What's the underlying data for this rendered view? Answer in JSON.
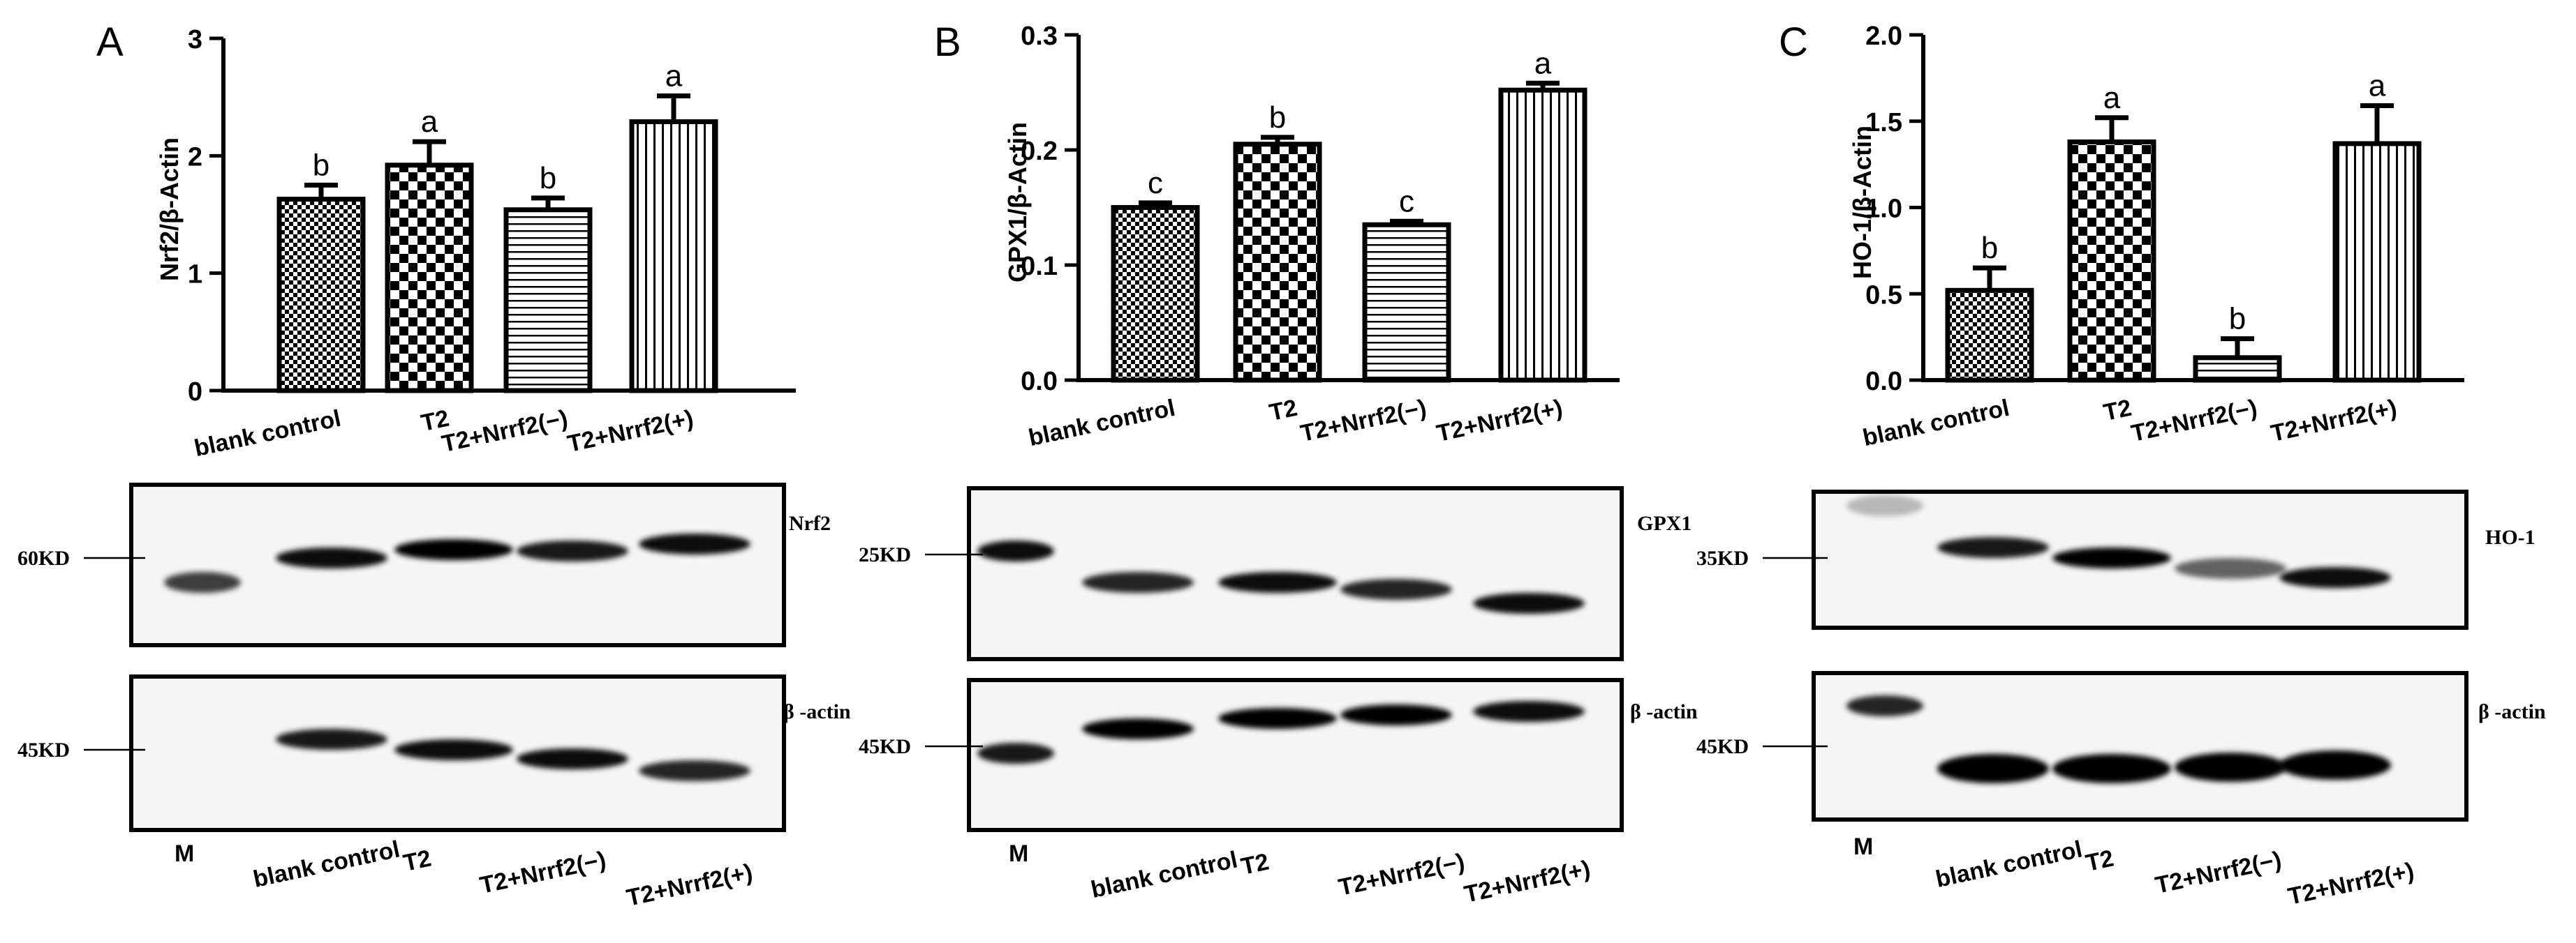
{
  "chart_data": [
    {
      "type": "bar",
      "panel_label": "A",
      "categories": [
        "blank control",
        "T2",
        "T2+Nrrf2(−)",
        "T2+Nrrf2(+)"
      ],
      "values": [
        1.63,
        1.92,
        1.54,
        2.29
      ],
      "errors": [
        0.12,
        0.2,
        0.1,
        0.22
      ],
      "significance": [
        "b",
        "a",
        "b",
        "a"
      ],
      "patterns": [
        "fine-check",
        "checker",
        "horizontal",
        "vertical"
      ],
      "ylabel": "Nrf2/β-Actin",
      "ylim": [
        0,
        3
      ],
      "yticks": [
        0,
        1,
        2,
        3
      ],
      "ytick_labels": [
        "0",
        "1",
        "2",
        "3"
      ]
    },
    {
      "type": "bar",
      "panel_label": "B",
      "categories": [
        "blank control",
        "T2",
        "T2+Nrrf2(−)",
        "T2+Nrrf2(+)"
      ],
      "values": [
        0.15,
        0.205,
        0.135,
        0.252
      ],
      "errors": [
        0.004,
        0.006,
        0.003,
        0.006
      ],
      "significance": [
        "c",
        "b",
        "c",
        "a"
      ],
      "patterns": [
        "fine-check",
        "checker",
        "horizontal",
        "vertical"
      ],
      "ylabel": "GPX1/β-Actin",
      "ylim": [
        0,
        0.3
      ],
      "yticks": [
        0,
        0.1,
        0.2,
        0.3
      ],
      "ytick_labels": [
        "0.0",
        "0.1",
        "0.2",
        "0.3"
      ]
    },
    {
      "type": "bar",
      "panel_label": "C",
      "categories": [
        "blank control",
        "T2",
        "T2+Nrrf2(−)",
        "T2+Nrrf2(+)"
      ],
      "values": [
        0.52,
        1.38,
        0.13,
        1.37
      ],
      "errors": [
        0.13,
        0.14,
        0.11,
        0.22
      ],
      "significance": [
        "b",
        "a",
        "b",
        "a"
      ],
      "patterns": [
        "fine-check",
        "checker",
        "horizontal",
        "vertical"
      ],
      "ylabel": "HO-1/β-Actin",
      "ylim": [
        0,
        2.0
      ],
      "yticks": [
        0,
        0.5,
        1.0,
        1.5,
        2.0
      ],
      "ytick_labels": [
        "0.0",
        "0.5",
        "1.0",
        "1.5",
        "2.0"
      ]
    }
  ],
  "blots": [
    {
      "panel_label": "A",
      "marker_lane": "M",
      "lane_labels": [
        "M",
        "blank control",
        "T2",
        "T2+Nrrf2(−)",
        "T2+Nrrf2(+)"
      ],
      "target": {
        "name": "Nrf2",
        "size": "60KD",
        "band_intensity": [
          0.75,
          0.95,
          1.0,
          0.9,
          0.95
        ]
      },
      "loading": {
        "name": "β -actin",
        "size": "45KD",
        "band_intensity": [
          0.0,
          0.9,
          0.95,
          0.95,
          0.85
        ]
      }
    },
    {
      "panel_label": "B",
      "marker_lane": "M",
      "lane_labels": [
        "M",
        "blank control",
        "T2",
        "T2+Nrrf2(−)",
        "T2+Nrrf2(+)"
      ],
      "target": {
        "name": "GPX1",
        "size": "25KD",
        "band_intensity": [
          0.95,
          0.85,
          0.95,
          0.85,
          0.95
        ]
      },
      "loading": {
        "name": "β -actin",
        "size": "45KD",
        "band_intensity": [
          0.9,
          1.0,
          1.0,
          1.0,
          0.95
        ]
      }
    },
    {
      "panel_label": "C",
      "marker_lane": "M",
      "lane_labels": [
        "M",
        "blank control",
        "T2",
        "T2+Nrrf2(−)",
        "T2+Nrrf2(+)"
      ],
      "target": {
        "name": "HO-1",
        "size": "35KD",
        "band_intensity": [
          0.25,
          0.9,
          1.0,
          0.6,
          0.95
        ]
      },
      "loading": {
        "name": "β -actin",
        "size": "45KD",
        "band_intensity": [
          0.85,
          1.0,
          1.0,
          1.0,
          1.0
        ]
      }
    }
  ],
  "colors": {
    "ink": "#000000",
    "background": "#ffffff",
    "blot_background": "#f5f5f5"
  }
}
